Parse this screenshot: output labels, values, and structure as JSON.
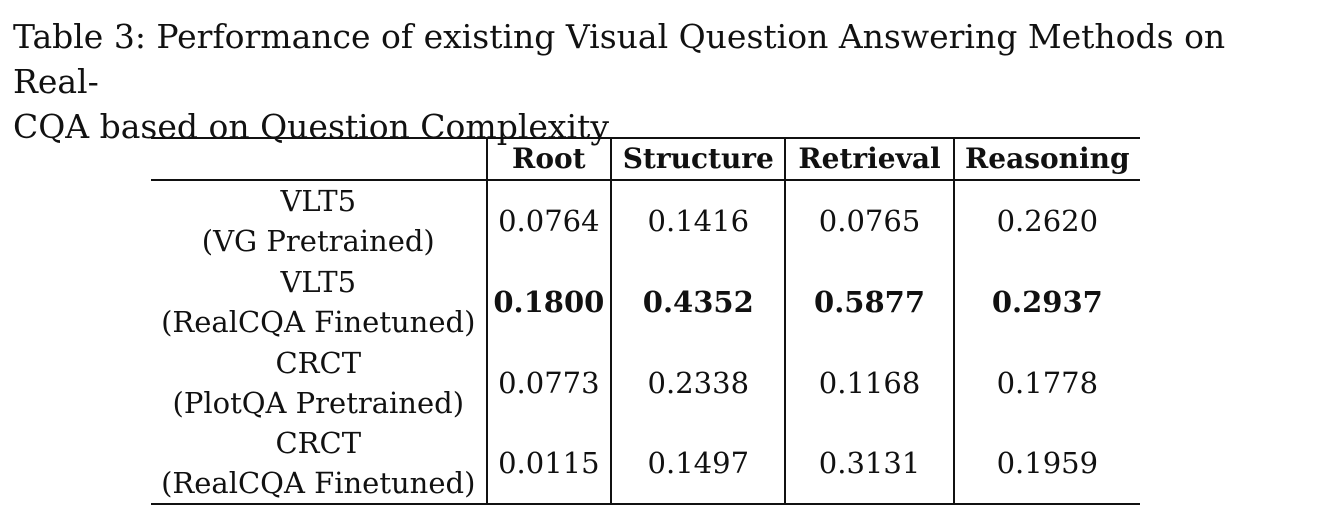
{
  "caption": {
    "line1": "Table 3: Performance of existing Visual Question Answering Methods on Real-",
    "line2": "CQA based on Question Complexity"
  },
  "table": {
    "columns": [
      "",
      "Root",
      "Structure",
      "Retrieval",
      "Reasoning"
    ],
    "rows": [
      {
        "method": "VLT5",
        "variant": "(VG Pretrained)",
        "values": [
          "0.0764",
          "0.1416",
          "0.0765",
          "0.2620"
        ],
        "bold": false
      },
      {
        "method": "VLT5",
        "variant": "(RealCQA Finetuned)",
        "values": [
          "0.1800",
          "0.4352",
          "0.5877",
          "0.2937"
        ],
        "bold": true
      },
      {
        "method": "CRCT",
        "variant": "(PlotQA Pretrained)",
        "values": [
          "0.0773",
          "0.2338",
          "0.1168",
          "0.1778"
        ],
        "bold": false
      },
      {
        "method": "CRCT",
        "variant": "(RealCQA Finetuned)",
        "values": [
          "0.0115",
          "0.1497",
          "0.3131",
          "0.1959"
        ],
        "bold": false
      }
    ]
  }
}
